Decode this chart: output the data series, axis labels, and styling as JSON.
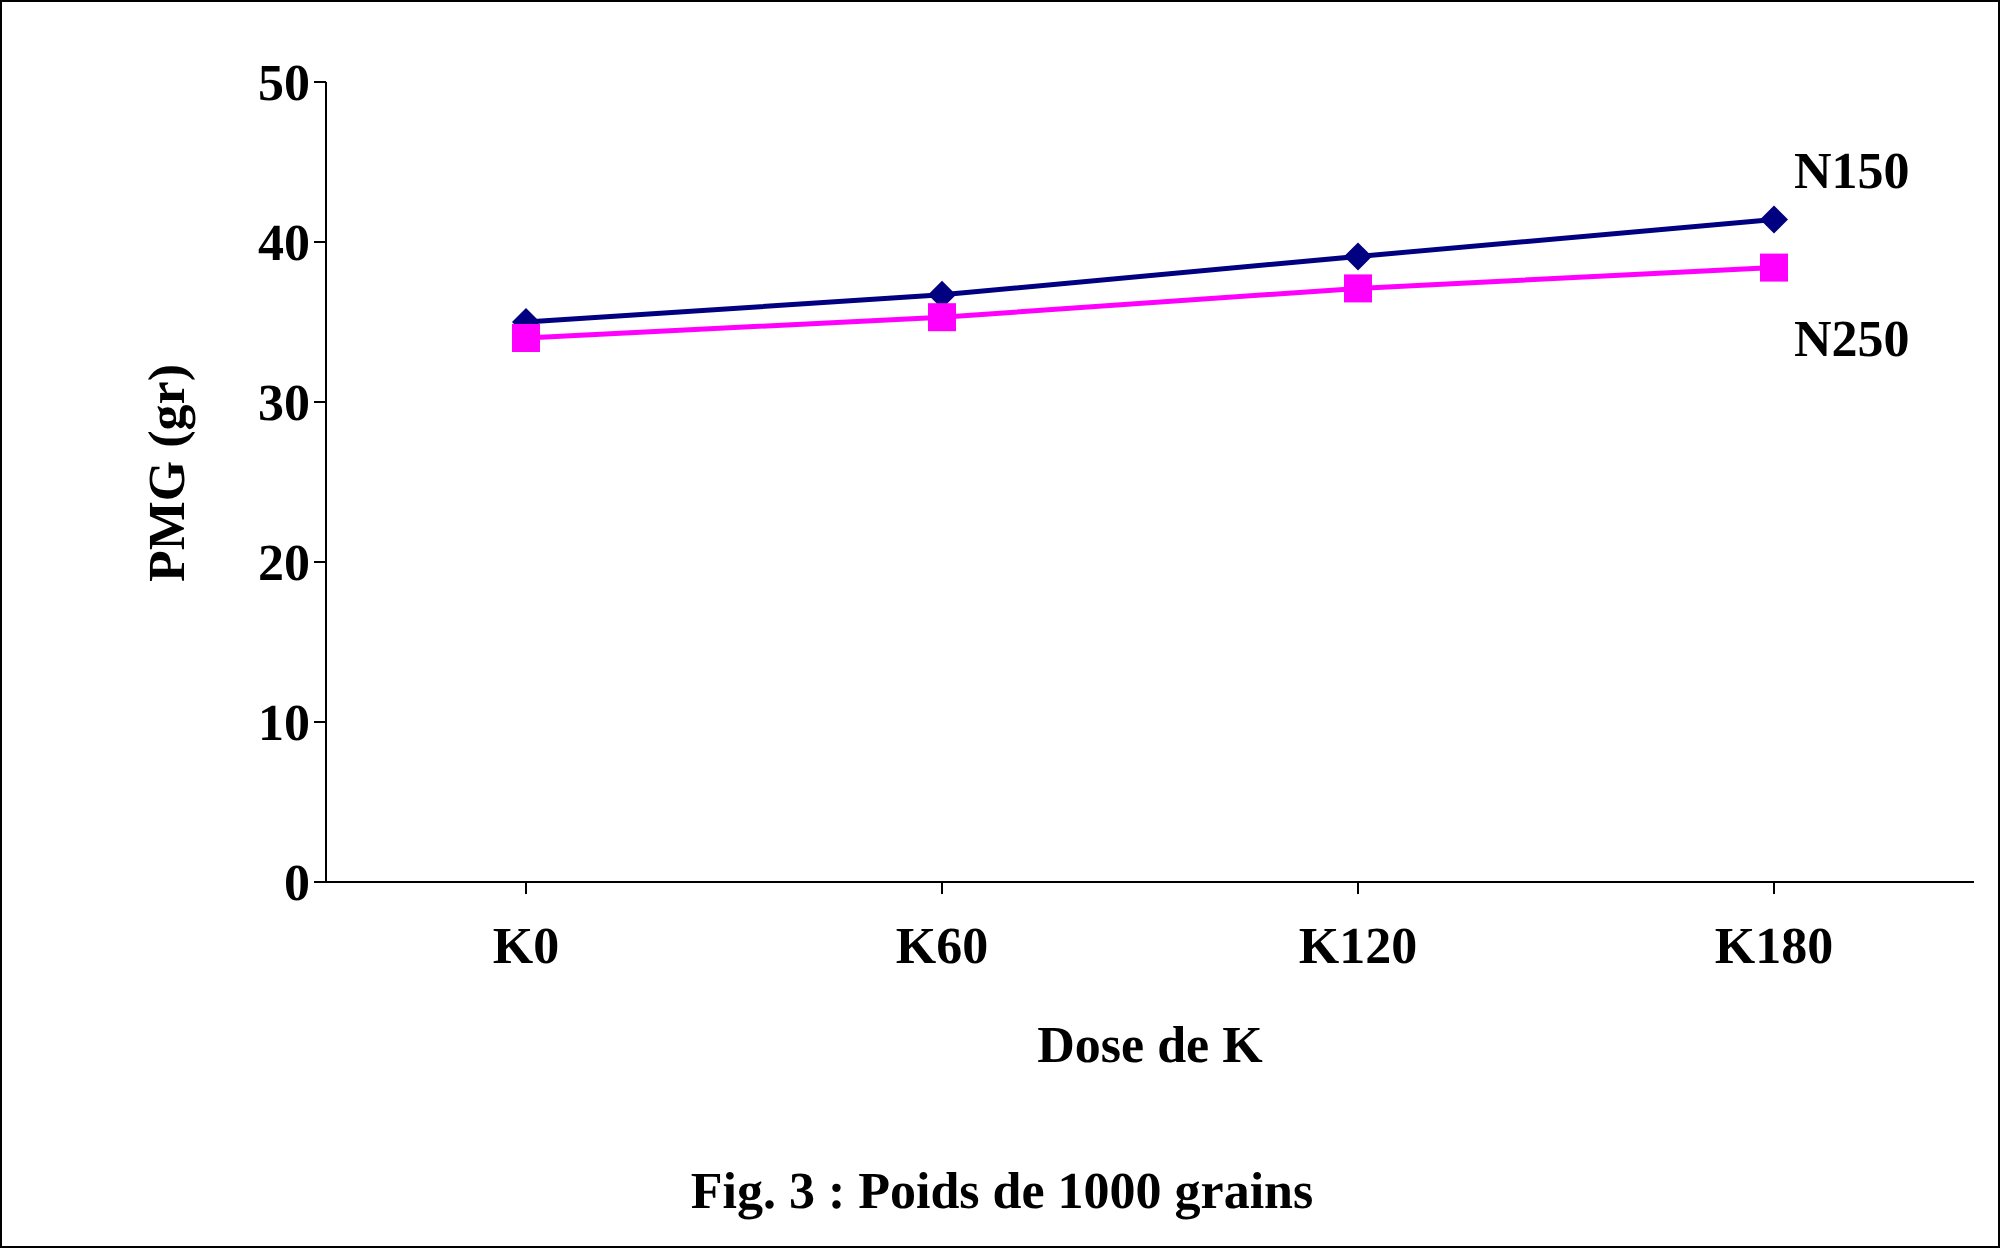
{
  "chart_data": {
    "type": "line",
    "title": "Fig. 3 : Poids de 1000 grains",
    "xlabel": "Dose de K",
    "ylabel": "PMG (gr)",
    "categories": [
      "K0",
      "K60",
      "K120",
      "K180"
    ],
    "series": [
      {
        "name": "N150",
        "color": "#000080",
        "marker": "diamond",
        "values": [
          35,
          36.7,
          39.1,
          41.4
        ]
      },
      {
        "name": "N250",
        "color": "#ff00ff",
        "marker": "square",
        "values": [
          34,
          35.3,
          37.1,
          38.4
        ]
      }
    ],
    "ylim": [
      0,
      50
    ],
    "yticks": [
      0,
      10,
      20,
      30,
      40,
      50
    ],
    "grid": false,
    "legend": false,
    "line_style": "solid"
  }
}
